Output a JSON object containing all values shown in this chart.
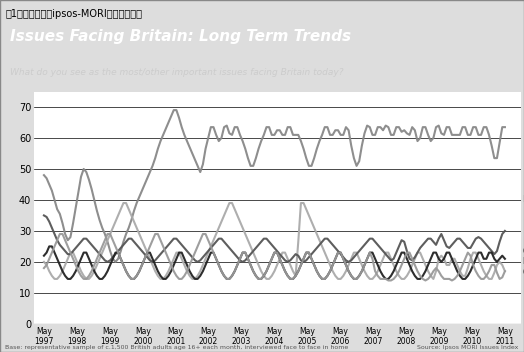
{
  "title": "Issues Facing Britain: Long Term Trends",
  "subtitle": "What do you see as the most/other important issues facing Britain today?",
  "footer_left": "Base: representative sample of c.1,500 British adults age 16+ each month, interviewed face to face in home",
  "footer_right": "Source: Ipsos MORI Issues Index",
  "fig_label": "図1　イギリス（ipsos-MORI）の調査結果",
  "ylim": [
    0,
    75
  ],
  "yticks": [
    0,
    10,
    20,
    30,
    40,
    50,
    60,
    70
  ],
  "x_labels": [
    "May\n1997",
    "May\n1998",
    "May\n1999",
    "May\n2000",
    "May\n2001",
    "May\n2002",
    "May\n2003",
    "May\n2004",
    "May\n2005",
    "May\n2006",
    "May\n2007",
    "May\n2008",
    "May\n2009",
    "May\n2010",
    "May\n2011"
  ],
  "series": {
    "Economy": {
      "color": "#888888",
      "linewidth": 1.5,
      "data": [
        48,
        46,
        44,
        42,
        38,
        36,
        35,
        30,
        28,
        26,
        30,
        35,
        40,
        45,
        50,
        50,
        48,
        45,
        42,
        38,
        35,
        32,
        30,
        28,
        25,
        22,
        20,
        20,
        22,
        25,
        28,
        30,
        32,
        35,
        38,
        40,
        42,
        44,
        46,
        48,
        50,
        52,
        55,
        58,
        60,
        62,
        64,
        66,
        68,
        70,
        68,
        65,
        62,
        60,
        58,
        56,
        54,
        52,
        50,
        48,
        55,
        58,
        62,
        65,
        62,
        60,
        58,
        62,
        65,
        63,
        60,
        62,
        65,
        62,
        60,
        58,
        55,
        52,
        50,
        52,
        55,
        58,
        60,
        62,
        65,
        62,
        60,
        62,
        63,
        62,
        60,
        62,
        65,
        62,
        60,
        62,
        60,
        58,
        55,
        52,
        50,
        52,
        55,
        58,
        60,
        62,
        65,
        62,
        60,
        62,
        63,
        62,
        60,
        62,
        65,
        60,
        55,
        52,
        50,
        55,
        60,
        63,
        65,
        62,
        60,
        62,
        65,
        62,
        63,
        65,
        62,
        60,
        62,
        65,
        62,
        62,
        63,
        60,
        62,
        65,
        60,
        58,
        62,
        65,
        62,
        60,
        58,
        62,
        65,
        63,
        60,
        62,
        65,
        62,
        60,
        62,
        60,
        62,
        65,
        62,
        60,
        62,
        65,
        62,
        60,
        62,
        65,
        62,
        60,
        55,
        52,
        55,
        62,
        65,
        62
      ]
    },
    "Race / Immigration": {
      "color": "#aaaaaa",
      "linewidth": 1.5,
      "data": [
        20,
        18,
        16,
        15,
        14,
        15,
        16,
        18,
        20,
        22,
        24,
        22,
        20,
        18,
        16,
        15,
        14,
        15,
        16,
        18,
        20,
        22,
        24,
        26,
        28,
        30,
        32,
        34,
        36,
        38,
        40,
        38,
        36,
        34,
        32,
        30,
        28,
        26,
        24,
        22,
        20,
        18,
        16,
        15,
        14,
        15,
        16,
        18,
        20,
        22,
        24,
        22,
        20,
        18,
        16,
        15,
        14,
        15,
        16,
        18,
        20,
        22,
        24,
        26,
        28,
        30,
        32,
        34,
        36,
        38,
        40,
        38,
        36,
        34,
        32,
        30,
        28,
        26,
        24,
        22,
        20,
        18,
        16,
        15,
        14,
        15,
        16,
        18,
        20,
        22,
        24,
        22,
        20,
        18,
        16,
        15,
        38,
        40,
        38,
        36,
        34,
        32,
        30,
        28,
        26,
        24,
        22,
        20,
        18,
        16,
        15,
        14,
        15,
        16,
        18,
        20,
        22,
        24,
        22,
        20,
        18,
        16,
        15,
        14,
        15,
        16,
        18,
        20,
        22,
        24,
        22,
        20,
        18,
        16,
        15,
        14,
        15,
        16,
        18,
        20,
        22,
        24,
        22,
        20,
        18,
        16,
        15,
        14,
        20,
        22,
        22,
        20,
        18,
        20,
        22,
        20,
        18,
        16,
        15,
        16,
        20,
        22,
        24,
        22,
        20,
        18,
        16,
        15,
        14,
        15,
        18,
        20,
        20,
        18,
        16
      ]
    },
    "Unemployment": {
      "color": "#555555",
      "linewidth": 1.5,
      "data": [
        35,
        34,
        32,
        30,
        28,
        26,
        25,
        24,
        23,
        22,
        23,
        24,
        25,
        26,
        27,
        28,
        27,
        26,
        25,
        24,
        23,
        22,
        21,
        20,
        20,
        21,
        22,
        23,
        24,
        25,
        26,
        27,
        28,
        27,
        26,
        25,
        24,
        23,
        22,
        21,
        20,
        20,
        21,
        22,
        23,
        24,
        25,
        26,
        27,
        28,
        27,
        26,
        25,
        24,
        23,
        22,
        21,
        20,
        20,
        21,
        22,
        23,
        24,
        25,
        26,
        27,
        28,
        27,
        26,
        25,
        24,
        23,
        22,
        21,
        20,
        20,
        21,
        22,
        23,
        24,
        25,
        26,
        27,
        28,
        27,
        26,
        25,
        24,
        23,
        22,
        21,
        20,
        20,
        21,
        22,
        23,
        21,
        20,
        20,
        21,
        22,
        23,
        24,
        25,
        26,
        27,
        28,
        27,
        26,
        25,
        24,
        23,
        22,
        21,
        20,
        20,
        21,
        22,
        23,
        24,
        25,
        26,
        27,
        28,
        27,
        26,
        25,
        24,
        23,
        22,
        21,
        20,
        22,
        24,
        26,
        28,
        25,
        22,
        20,
        21,
        22,
        24,
        25,
        26,
        27,
        28,
        27,
        26,
        25,
        30,
        28,
        26,
        24,
        25,
        26,
        27,
        28,
        27,
        26,
        25,
        24,
        25,
        27,
        28,
        28,
        27,
        26,
        25,
        24,
        23,
        22,
        25,
        28,
        30,
        30
      ]
    },
    "Crime / Law & Order": {
      "color": "#222222",
      "linewidth": 1.5,
      "data": [
        22,
        24,
        26,
        24,
        22,
        20,
        18,
        16,
        15,
        14,
        15,
        16,
        18,
        20,
        22,
        24,
        22,
        20,
        18,
        16,
        15,
        14,
        15,
        16,
        18,
        20,
        22,
        24,
        22,
        20,
        18,
        16,
        15,
        14,
        15,
        16,
        18,
        20,
        22,
        24,
        22,
        20,
        18,
        16,
        15,
        14,
        15,
        16,
        18,
        20,
        22,
        24,
        22,
        20,
        18,
        16,
        15,
        14,
        15,
        16,
        18,
        20,
        22,
        24,
        22,
        20,
        18,
        16,
        15,
        14,
        15,
        16,
        18,
        20,
        22,
        24,
        22,
        20,
        18,
        16,
        15,
        14,
        15,
        16,
        18,
        20,
        22,
        24,
        22,
        20,
        18,
        16,
        15,
        14,
        15,
        16,
        18,
        20,
        22,
        24,
        22,
        20,
        18,
        16,
        15,
        14,
        15,
        16,
        18,
        20,
        22,
        24,
        22,
        20,
        18,
        16,
        15,
        14,
        15,
        16,
        18,
        20,
        22,
        24,
        22,
        20,
        18,
        16,
        15,
        14,
        15,
        16,
        18,
        20,
        22,
        24,
        22,
        20,
        18,
        16,
        15,
        14,
        15,
        16,
        18,
        20,
        22,
        24,
        22,
        20,
        20,
        22,
        24,
        22,
        20,
        18,
        16,
        15,
        14,
        15,
        16,
        18,
        20,
        22,
        24,
        22,
        20,
        22,
        24,
        22,
        20,
        20,
        22,
        22,
        20
      ]
    },
    "NHS": {
      "color": "#999999",
      "linewidth": 1.5,
      "data": [
        18,
        20,
        22,
        24,
        26,
        28,
        30,
        28,
        26,
        24,
        22,
        20,
        18,
        16,
        15,
        14,
        15,
        16,
        18,
        20,
        22,
        24,
        26,
        28,
        30,
        28,
        26,
        24,
        22,
        20,
        18,
        16,
        15,
        14,
        15,
        16,
        18,
        20,
        22,
        24,
        26,
        28,
        30,
        28,
        26,
        24,
        22,
        20,
        18,
        16,
        15,
        14,
        15,
        16,
        18,
        20,
        22,
        24,
        26,
        28,
        30,
        28,
        26,
        24,
        22,
        20,
        18,
        16,
        15,
        14,
        15,
        16,
        18,
        20,
        22,
        24,
        22,
        20,
        18,
        16,
        15,
        14,
        15,
        16,
        18,
        20,
        22,
        24,
        22,
        20,
        18,
        16,
        15,
        14,
        15,
        16,
        18,
        20,
        22,
        24,
        22,
        20,
        18,
        16,
        15,
        14,
        15,
        16,
        18,
        20,
        22,
        24,
        22,
        20,
        18,
        16,
        15,
        14,
        15,
        16,
        18,
        20,
        22,
        24,
        18,
        16,
        15,
        14,
        15,
        14,
        14,
        14,
        15,
        16,
        18,
        20,
        22,
        24,
        22,
        20,
        18,
        16,
        15,
        14,
        14,
        15,
        16,
        18,
        18,
        16,
        15,
        14,
        15,
        14,
        14,
        15,
        16,
        18,
        20,
        22,
        24,
        20,
        18,
        16,
        15,
        14,
        15,
        16,
        18,
        20,
        18,
        15,
        14,
        16,
        18
      ]
    }
  },
  "header_bg": "#444444",
  "subheader_bg": "#333333",
  "chart_bg": "#ffffff",
  "grid_color": "#000000",
  "axis_color": "#000000"
}
